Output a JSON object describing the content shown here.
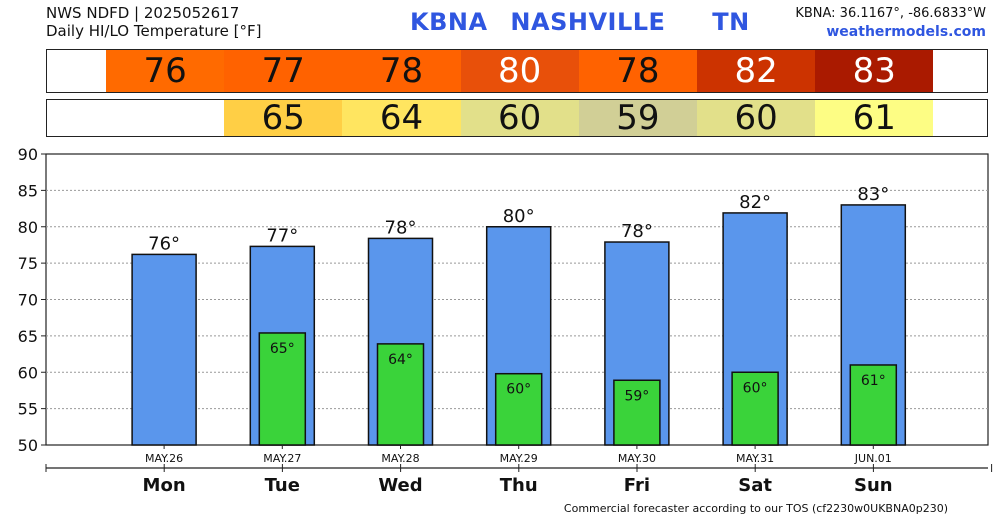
{
  "header": {
    "line1": "NWS NDFD | 2025052617",
    "line2": "Daily HI/LO Temperature [°F]",
    "station": "KBNA",
    "city": "NASHVILLE",
    "state": "TN",
    "coords": "KBNA: 36.1167°, -86.6833°W",
    "site": "weathermodels.com"
  },
  "footer": "Commercial forecaster according to our TOS (cf2230w0UKBNA0p230)",
  "colors": {
    "hi_bar": "#5a96ec",
    "lo_bar": "#3ad33a",
    "hi_cells": [
      "#ff6a00",
      "#ff6200",
      "#ff6200",
      "#e8500a",
      "#ff6200",
      "#cc3300",
      "#aa1a00"
    ],
    "lo_cells": [
      "#ffcf45",
      "#ffe560",
      "#e2e08a",
      "#d1cf96",
      "#e2e08a",
      "#fdfd84"
    ]
  },
  "chart_data": {
    "type": "bar",
    "categories": [
      "Mon",
      "Tue",
      "Wed",
      "Thu",
      "Fri",
      "Sat",
      "Sun"
    ],
    "dates": [
      "MAY.26",
      "MAY.27",
      "MAY.28",
      "MAY.29",
      "MAY.30",
      "MAY.31",
      "JUN.01"
    ],
    "ylim": [
      50,
      90
    ],
    "yticks": [
      50,
      55,
      60,
      65,
      70,
      75,
      80,
      85,
      90
    ],
    "grid": true,
    "series": [
      {
        "values": [
          76.2,
          77.3,
          78.4,
          80,
          77.9,
          81.9,
          83
        ]
      },
      {
        "values": [
          null,
          65.4,
          63.9,
          59.8,
          58.9,
          60,
          61
        ]
      }
    ],
    "hi_labels": [
      "76°",
      "77°",
      "78°",
      "80°",
      "78°",
      "82°",
      "83°"
    ],
    "lo_labels": [
      "",
      "65°",
      "64°",
      "60°",
      "59°",
      "60°",
      "61°"
    ],
    "hi_strip": [
      "76",
      "77",
      "78",
      "80",
      "78",
      "82",
      "83"
    ],
    "lo_strip": [
      "",
      "65",
      "64",
      "60",
      "59",
      "60",
      "61"
    ]
  }
}
